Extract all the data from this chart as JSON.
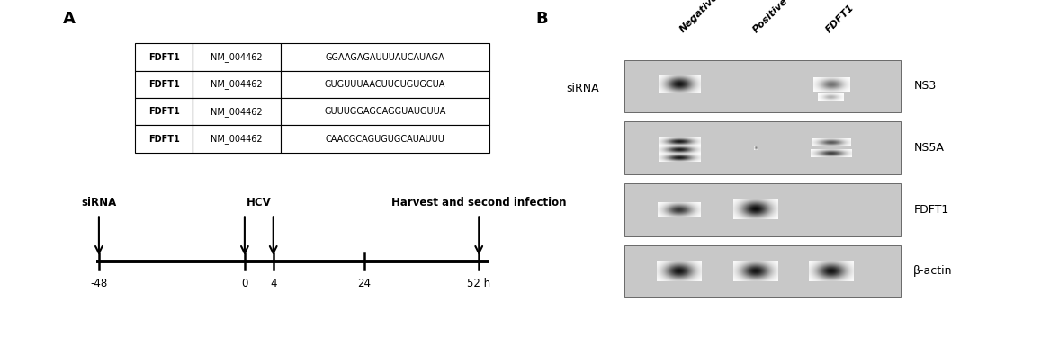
{
  "panel_A_label": "A",
  "panel_B_label": "B",
  "table_rows": [
    [
      "FDFT1",
      "NM_004462",
      "GGAAGAGAUUUAUCAUAGA"
    ],
    [
      "FDFT1",
      "NM_004462",
      "GUGUUUAACUUCUGUGCUA"
    ],
    [
      "FDFT1",
      "NM_004462",
      "GUUUGGAGCAGGUAUGUUA"
    ],
    [
      "FDFT1",
      "NM_004462",
      "CAACGCAGUGUGCAUAUUU"
    ]
  ],
  "timeline_labels": [
    "-48",
    "0",
    "4",
    "24",
    "52 h"
  ],
  "sirna_label": "siRNA",
  "hcv_label": "HCV",
  "harvest_label": "Harvest and second infection",
  "wb_sirna_label": "siRNA",
  "wb_col_labels": [
    "Negative",
    "Positive",
    "FDFT1"
  ],
  "wb_row_labels": [
    "NS3",
    "NS5A",
    "FDFT1",
    "β-actin"
  ],
  "background_color": "#ffffff"
}
